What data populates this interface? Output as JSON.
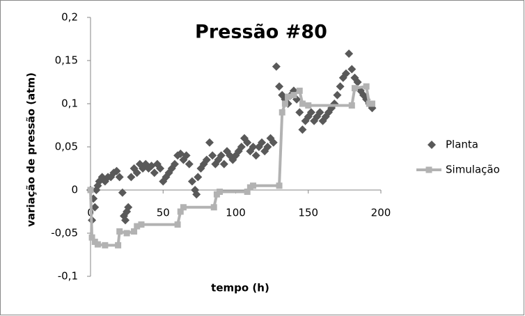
{
  "chart_data": {
    "type": "scatter",
    "title": "Pressão #80",
    "x_label": "tempo (h)",
    "y_label": "variação de pressão (atm)",
    "xlim": [
      0,
      200
    ],
    "xticks": [
      0,
      50,
      100,
      150,
      200
    ],
    "ylim": [
      -0.1,
      0.2
    ],
    "yticks": [
      {
        "value": -0.1,
        "label": "-0,1"
      },
      {
        "value": -0.05,
        "label": "-0,05"
      },
      0,
      {
        "value": 0.05,
        "label": "0,05"
      },
      {
        "value": 0.1,
        "label": "0,1"
      },
      {
        "value": 0.15,
        "label": "0,15"
      },
      {
        "value": 0.2,
        "label": "0,2"
      }
    ],
    "grid": false,
    "legend": "right",
    "series": [
      {
        "name": "Planta",
        "color": "#595959",
        "marker": "diamond",
        "line": false,
        "x": [
          0,
          1,
          2,
          3,
          4,
          5,
          6,
          8,
          10,
          12,
          14,
          16,
          18,
          20,
          22,
          23,
          24,
          25,
          26,
          28,
          30,
          32,
          34,
          36,
          38,
          40,
          42,
          44,
          46,
          48,
          50,
          52,
          54,
          56,
          58,
          60,
          62,
          64,
          66,
          68,
          70,
          72,
          73,
          74,
          76,
          78,
          80,
          82,
          84,
          86,
          88,
          90,
          92,
          94,
          96,
          98,
          100,
          102,
          104,
          106,
          108,
          110,
          112,
          114,
          116,
          118,
          120,
          122,
          124,
          126,
          128,
          130,
          132,
          134,
          136,
          138,
          140,
          142,
          144,
          146,
          148,
          150,
          152,
          154,
          156,
          158,
          160,
          162,
          164,
          166,
          168,
          170,
          172,
          174,
          176,
          178,
          180,
          182,
          184,
          186,
          188,
          190,
          192,
          194
        ],
        "values": [
          0,
          -0.035,
          -0.01,
          -0.02,
          0,
          0.005,
          0.01,
          0.015,
          0.01,
          0.015,
          0.015,
          0.02,
          0.022,
          0.015,
          -0.003,
          -0.03,
          -0.035,
          -0.025,
          -0.02,
          0.015,
          0.025,
          0.02,
          0.03,
          0.025,
          0.03,
          0.025,
          0.028,
          0.02,
          0.03,
          0.025,
          0.01,
          0.015,
          0.02,
          0.025,
          0.03,
          0.04,
          0.042,
          0.035,
          0.04,
          0.03,
          0.01,
          0,
          -0.005,
          0.015,
          0.025,
          0.03,
          0.035,
          0.055,
          0.04,
          0.03,
          0.035,
          0.04,
          0.03,
          0.045,
          0.04,
          0.035,
          0.04,
          0.045,
          0.05,
          0.06,
          0.055,
          0.045,
          0.05,
          0.04,
          0.05,
          0.055,
          0.045,
          0.05,
          0.06,
          0.055,
          0.143,
          0.12,
          0.11,
          0.105,
          0.1,
          0.11,
          0.115,
          0.105,
          0.09,
          0.07,
          0.08,
          0.085,
          0.09,
          0.08,
          0.085,
          0.09,
          0.08,
          0.085,
          0.09,
          0.095,
          0.1,
          0.11,
          0.12,
          0.13,
          0.135,
          0.158,
          0.14,
          0.13,
          0.125,
          0.115,
          0.11,
          0.105,
          0.1,
          0.095
        ]
      },
      {
        "name": "Simulação",
        "color": "#b2b2b2",
        "marker": "square",
        "line": true,
        "x": [
          0,
          1,
          3,
          5,
          10,
          19,
          20,
          25,
          30,
          32,
          35,
          60,
          62,
          64,
          85,
          87,
          89,
          108,
          110,
          112,
          130,
          132,
          134,
          136,
          140,
          144,
          146,
          150,
          180,
          182,
          190,
          192,
          194
        ],
        "values": [
          0,
          -0.055,
          -0.06,
          -0.063,
          -0.064,
          -0.064,
          -0.048,
          -0.05,
          -0.048,
          -0.042,
          -0.04,
          -0.04,
          -0.025,
          -0.02,
          -0.02,
          -0.005,
          -0.002,
          -0.002,
          0.003,
          0.005,
          0.005,
          0.09,
          0.1,
          0.108,
          0.11,
          0.115,
          0.1,
          0.098,
          0.098,
          0.118,
          0.12,
          0.1,
          0.1
        ]
      }
    ]
  }
}
